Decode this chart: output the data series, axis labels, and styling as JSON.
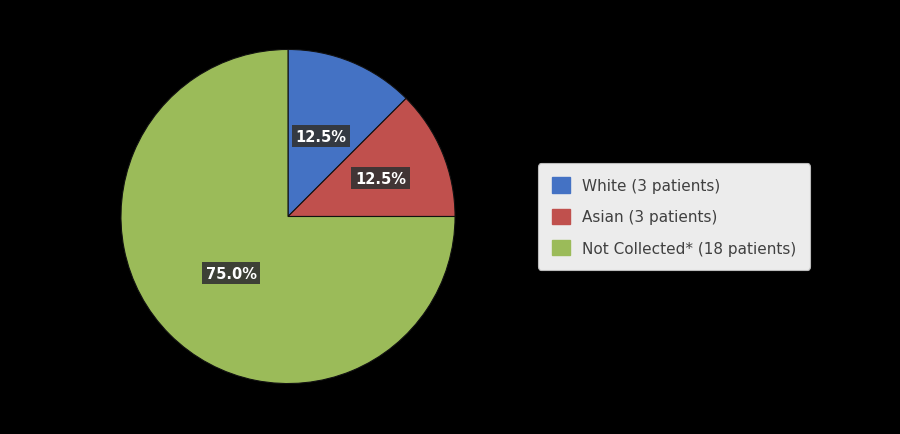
{
  "labels": [
    "White (3 patients)",
    "Asian (3 patients)",
    "Not Collected* (18 patients)"
  ],
  "values": [
    12.5,
    12.5,
    75.0
  ],
  "colors": [
    "#4472C4",
    "#C0504D",
    "#9BBB59"
  ],
  "autopct_labels": [
    "12.5%",
    "12.5%",
    "75.0%"
  ],
  "background_color": "#000000",
  "legend_bg_color": "#ECECEC",
  "label_box_color": "#333333",
  "label_text_color": "#FFFFFF",
  "legend_text_color": "#404040",
  "startangle": 90,
  "figsize": [
    9.0,
    4.35
  ],
  "label_radii": [
    0.55,
    0.62,
    0.45
  ],
  "label_angles_deg": [
    67.5,
    22.5,
    -112.5
  ]
}
